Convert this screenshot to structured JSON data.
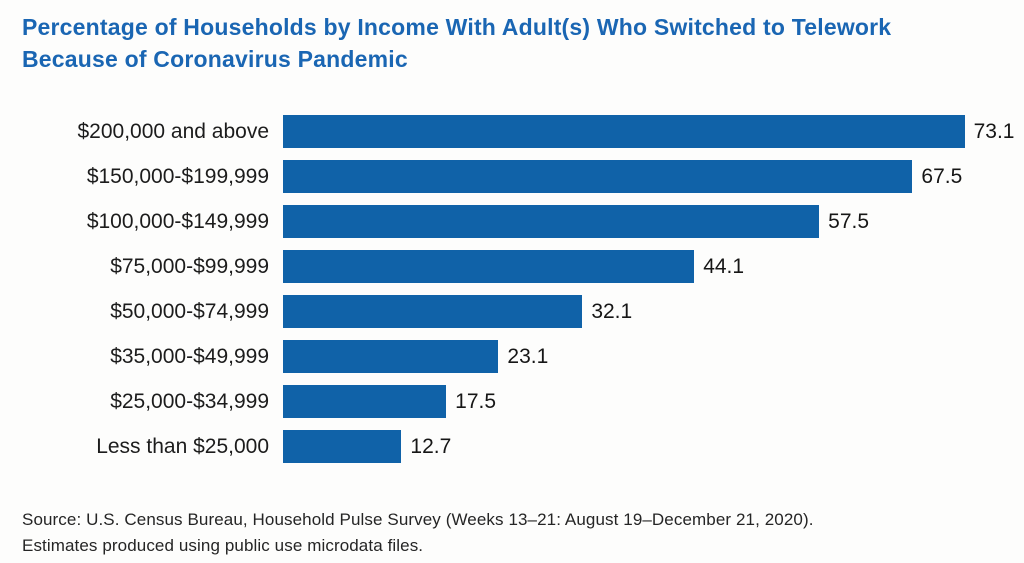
{
  "colors": {
    "bar": "#1062a8",
    "title": "#1a66b3",
    "text": "#1c1c1c"
  },
  "source": {
    "line1": "Source: U.S. Census Bureau, Household Pulse Survey (Weeks 13–21: August 19–December 21, 2020).",
    "line2": "Estimates produced using public use microdata files."
  },
  "chart_data": {
    "type": "bar",
    "orientation": "horizontal",
    "title": "Percentage of Households by Income With Adult(s) Who Switched to Telework Because of Coronavirus Pandemic",
    "categories": [
      "$200,000 and above",
      "$150,000-$199,999",
      "$100,000-$149,999",
      "$75,000-$99,999",
      "$50,000-$74,999",
      "$35,000-$49,999",
      "$25,000-$34,999",
      "Less than $25,000"
    ],
    "values": [
      73.1,
      67.5,
      57.5,
      44.1,
      32.1,
      23.1,
      17.5,
      12.7
    ],
    "xlabel": "",
    "ylabel": "",
    "xlim": [
      0,
      77
    ],
    "value_labels": true,
    "grid": false,
    "legend": false
  }
}
